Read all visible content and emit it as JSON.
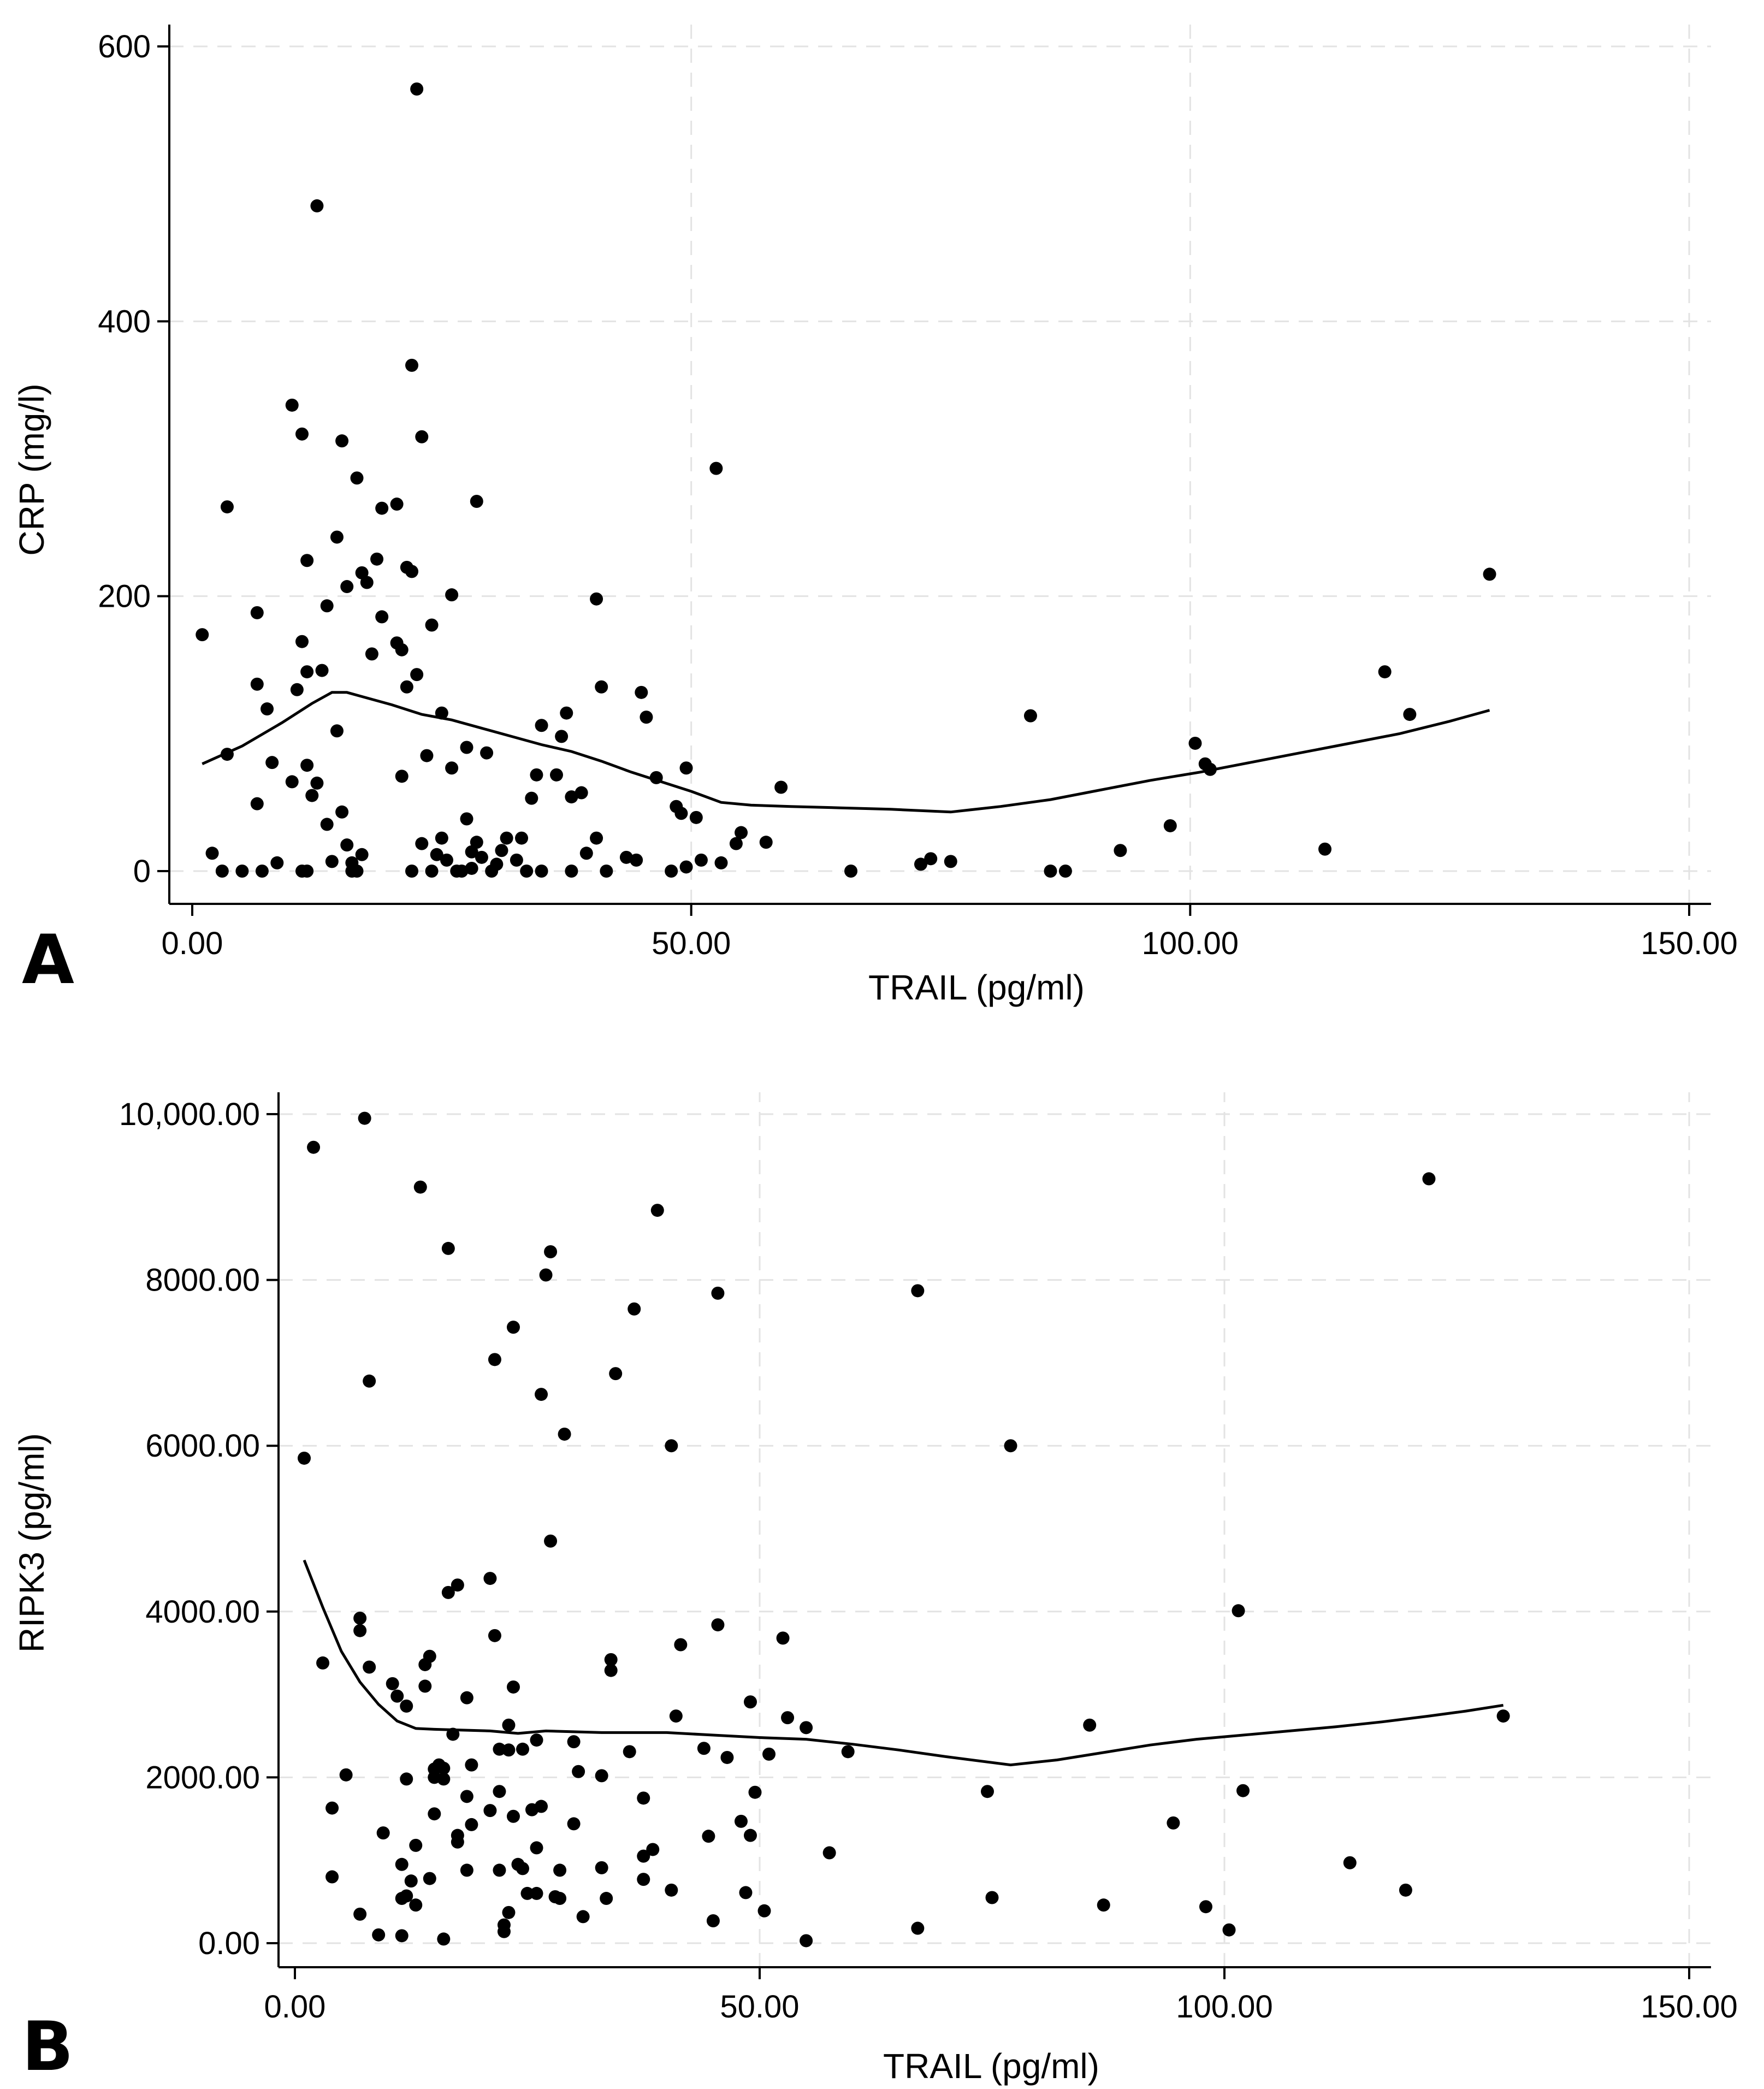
{
  "colors": {
    "background": "#ffffff",
    "ink": "#000000",
    "grid": "#e3e3e3"
  },
  "chart_data": [
    {
      "type": "scatter",
      "panel_label": "A",
      "title": "",
      "xlabel": "TRAIL (pg/ml)",
      "ylabel": "CRP (mg/l)",
      "xlim": [
        0,
        150
      ],
      "ylim": [
        0,
        600
      ],
      "xticks": [
        0,
        50,
        100,
        150
      ],
      "yticks": [
        0,
        200,
        400,
        600
      ],
      "xtick_labels": [
        "0.00",
        "50.00",
        "100.00",
        "150.00"
      ],
      "ytick_labels": [
        "0",
        "200",
        "400",
        "600"
      ],
      "grid": true,
      "legend": "none",
      "points": [
        [
          1,
          172
        ],
        [
          2,
          13
        ],
        [
          3,
          0
        ],
        [
          3.5,
          265
        ],
        [
          3.5,
          85
        ],
        [
          5,
          0
        ],
        [
          6.5,
          188
        ],
        [
          6.5,
          136
        ],
        [
          6.5,
          49
        ],
        [
          7,
          0
        ],
        [
          7.5,
          118
        ],
        [
          8,
          79
        ],
        [
          8.5,
          6
        ],
        [
          10,
          339
        ],
        [
          10,
          65
        ],
        [
          10.5,
          132
        ],
        [
          11,
          318
        ],
        [
          11,
          167
        ],
        [
          11,
          0
        ],
        [
          11.5,
          0
        ],
        [
          11.5,
          226
        ],
        [
          11.5,
          77
        ],
        [
          11.5,
          145
        ],
        [
          12,
          55
        ],
        [
          12.5,
          64
        ],
        [
          12.5,
          484
        ],
        [
          13,
          146
        ],
        [
          13.5,
          34
        ],
        [
          13.5,
          193
        ],
        [
          14,
          7
        ],
        [
          14.5,
          102
        ],
        [
          14.5,
          243
        ],
        [
          15,
          43
        ],
        [
          15,
          313
        ],
        [
          15.5,
          19
        ],
        [
          15.5,
          207
        ],
        [
          16,
          6
        ],
        [
          16,
          0
        ],
        [
          16.5,
          286
        ],
        [
          16.5,
          0
        ],
        [
          17,
          12
        ],
        [
          17,
          217
        ],
        [
          17.5,
          210
        ],
        [
          18,
          158
        ],
        [
          18.5,
          227
        ],
        [
          19,
          185
        ],
        [
          19,
          264
        ],
        [
          20.5,
          267
        ],
        [
          20.5,
          166
        ],
        [
          21,
          69
        ],
        [
          21,
          161
        ],
        [
          21.5,
          134
        ],
        [
          21.5,
          221
        ],
        [
          22,
          0
        ],
        [
          22,
          368
        ],
        [
          22,
          218
        ],
        [
          22.5,
          143
        ],
        [
          22.5,
          569
        ],
        [
          23,
          20
        ],
        [
          23,
          316
        ],
        [
          23.5,
          84
        ],
        [
          24,
          0
        ],
        [
          24,
          179
        ],
        [
          24.5,
          12
        ],
        [
          25,
          115
        ],
        [
          25,
          24
        ],
        [
          25.5,
          8
        ],
        [
          26,
          75
        ],
        [
          26,
          201
        ],
        [
          26.5,
          0
        ],
        [
          27,
          0
        ],
        [
          27.5,
          38
        ],
        [
          27.5,
          90
        ],
        [
          28,
          14
        ],
        [
          28,
          2
        ],
        [
          28.5,
          21
        ],
        [
          28.5,
          269
        ],
        [
          29,
          10
        ],
        [
          29.5,
          86
        ],
        [
          30,
          0
        ],
        [
          30.5,
          5
        ],
        [
          31,
          15
        ],
        [
          31.5,
          24
        ],
        [
          32.5,
          8
        ],
        [
          33,
          24
        ],
        [
          33.5,
          0
        ],
        [
          34,
          53
        ],
        [
          34.5,
          70
        ],
        [
          35,
          106
        ],
        [
          35,
          0
        ],
        [
          36.5,
          70
        ],
        [
          37,
          98
        ],
        [
          37.5,
          115
        ],
        [
          38,
          0
        ],
        [
          38,
          54
        ],
        [
          39,
          57
        ],
        [
          39.5,
          13
        ],
        [
          40.5,
          24
        ],
        [
          40.5,
          198
        ],
        [
          41,
          134
        ],
        [
          41.5,
          0
        ],
        [
          43.5,
          10
        ],
        [
          44.5,
          8
        ],
        [
          45,
          130
        ],
        [
          45.5,
          112
        ],
        [
          46.5,
          68
        ],
        [
          48,
          0
        ],
        [
          48.5,
          47
        ],
        [
          49,
          42
        ],
        [
          49.5,
          3
        ],
        [
          49.5,
          75
        ],
        [
          50.5,
          39
        ],
        [
          51,
          8
        ],
        [
          52.5,
          293
        ],
        [
          53,
          6
        ],
        [
          54.5,
          20
        ],
        [
          55,
          28
        ],
        [
          57.5,
          21
        ],
        [
          59,
          61
        ],
        [
          66,
          0
        ],
        [
          73,
          5
        ],
        [
          74,
          9
        ],
        [
          76,
          7
        ],
        [
          84,
          113
        ],
        [
          86,
          0
        ],
        [
          87.5,
          0
        ],
        [
          93,
          15
        ],
        [
          98,
          33
        ],
        [
          100.5,
          93
        ],
        [
          101.5,
          78
        ],
        [
          102,
          74
        ],
        [
          113.5,
          16
        ],
        [
          119.5,
          145
        ],
        [
          122,
          114
        ],
        [
          130,
          216
        ]
      ],
      "fit_line": {
        "x": [
          1,
          5,
          9,
          12,
          14,
          15.5,
          17,
          20,
          23,
          26,
          29,
          32,
          35,
          38,
          41,
          44,
          47,
          50,
          53,
          56,
          60,
          65,
          70,
          76,
          81,
          86,
          91,
          96,
          101,
          106,
          111,
          116,
          121,
          126,
          130
        ],
        "y": [
          78,
          91,
          108,
          122,
          130,
          130,
          127,
          121,
          114,
          110,
          104,
          98,
          92,
          87,
          80,
          72,
          65,
          58,
          50,
          48,
          47,
          46,
          45,
          43,
          47,
          52,
          59,
          66,
          72,
          79,
          86,
          93,
          100,
          109,
          117
        ]
      }
    },
    {
      "type": "scatter",
      "panel_label": "B",
      "title": "",
      "xlabel": "TRAIL (pg/ml)",
      "ylabel": "RIPK3 (pg/ml)",
      "xlim": [
        0,
        150
      ],
      "ylim": [
        0,
        10000
      ],
      "xticks": [
        0,
        50,
        100,
        150
      ],
      "yticks": [
        0,
        2000,
        4000,
        6000,
        8000,
        10000
      ],
      "xtick_labels": [
        "0.00",
        "50.00",
        "100.00",
        "150.00"
      ],
      "ytick_labels": [
        "0.00",
        "2000.00",
        "4000.00",
        "6000.00",
        "8000.00",
        "10,000.00"
      ],
      "grid": true,
      "legend": "none",
      "points": [
        [
          1,
          5850
        ],
        [
          2,
          9600
        ],
        [
          3,
          3380
        ],
        [
          4,
          1630
        ],
        [
          4,
          800
        ],
        [
          5.5,
          2030
        ],
        [
          7,
          3920
        ],
        [
          7,
          3770
        ],
        [
          7,
          350
        ],
        [
          7.5,
          9950
        ],
        [
          8,
          6780
        ],
        [
          8,
          3330
        ],
        [
          9,
          100
        ],
        [
          9.5,
          1330
        ],
        [
          10.5,
          3130
        ],
        [
          11,
          2980
        ],
        [
          11.5,
          950
        ],
        [
          11.5,
          540
        ],
        [
          11.5,
          90
        ],
        [
          12,
          570
        ],
        [
          12,
          1980
        ],
        [
          12,
          2860
        ],
        [
          12.5,
          750
        ],
        [
          13,
          1180
        ],
        [
          13,
          460
        ],
        [
          13.5,
          9120
        ],
        [
          14,
          3100
        ],
        [
          14,
          3360
        ],
        [
          14.5,
          780
        ],
        [
          14.5,
          3460
        ],
        [
          15,
          2100
        ],
        [
          15,
          2000
        ],
        [
          15,
          1560
        ],
        [
          15.5,
          2150
        ],
        [
          16,
          1980
        ],
        [
          16,
          2110
        ],
        [
          16,
          50
        ],
        [
          16.5,
          4230
        ],
        [
          16.5,
          8380
        ],
        [
          17,
          2520
        ],
        [
          17.5,
          1220
        ],
        [
          17.5,
          1300
        ],
        [
          17.5,
          4320
        ],
        [
          18.5,
          880
        ],
        [
          18.5,
          1770
        ],
        [
          18.5,
          2960
        ],
        [
          19,
          1430
        ],
        [
          19,
          2150
        ],
        [
          21,
          1600
        ],
        [
          21,
          4400
        ],
        [
          21.5,
          7040
        ],
        [
          21.5,
          3710
        ],
        [
          22,
          2340
        ],
        [
          22,
          1830
        ],
        [
          22,
          880
        ],
        [
          22.5,
          220
        ],
        [
          22.5,
          140
        ],
        [
          23,
          2330
        ],
        [
          23,
          2630
        ],
        [
          23,
          370
        ],
        [
          23.5,
          3090
        ],
        [
          23.5,
          1530
        ],
        [
          23.5,
          7430
        ],
        [
          24,
          950
        ],
        [
          24.5,
          2340
        ],
        [
          24.5,
          900
        ],
        [
          25,
          600
        ],
        [
          25.5,
          1610
        ],
        [
          26,
          2450
        ],
        [
          26,
          600
        ],
        [
          26,
          1150
        ],
        [
          26.5,
          1650
        ],
        [
          26.5,
          6620
        ],
        [
          27,
          8060
        ],
        [
          27.5,
          4850
        ],
        [
          27.5,
          8340
        ],
        [
          28,
          560
        ],
        [
          28.5,
          540
        ],
        [
          28.5,
          880
        ],
        [
          29,
          6140
        ],
        [
          30,
          2430
        ],
        [
          30,
          1440
        ],
        [
          30.5,
          2070
        ],
        [
          31,
          320
        ],
        [
          33,
          910
        ],
        [
          33,
          2020
        ],
        [
          33.5,
          540
        ],
        [
          34,
          3420
        ],
        [
          34,
          3290
        ],
        [
          34.5,
          6870
        ],
        [
          36,
          2310
        ],
        [
          36.5,
          7650
        ],
        [
          37.5,
          1750
        ],
        [
          37.5,
          1050
        ],
        [
          37.5,
          770
        ],
        [
          38.5,
          1130
        ],
        [
          39,
          8840
        ],
        [
          40.5,
          6000
        ],
        [
          40.5,
          640
        ],
        [
          41,
          2740
        ],
        [
          41.5,
          3600
        ],
        [
          44,
          2350
        ],
        [
          44.5,
          1290
        ],
        [
          45,
          270
        ],
        [
          45.5,
          3840
        ],
        [
          45.5,
          7840
        ],
        [
          46.5,
          2240
        ],
        [
          48,
          1470
        ],
        [
          48.5,
          610
        ],
        [
          49,
          2910
        ],
        [
          49,
          1300
        ],
        [
          49.5,
          1820
        ],
        [
          50.5,
          390
        ],
        [
          51,
          2280
        ],
        [
          52.5,
          3680
        ],
        [
          53,
          2720
        ],
        [
          55,
          30
        ],
        [
          55,
          2600
        ],
        [
          57.5,
          1090
        ],
        [
          59.5,
          2310
        ],
        [
          67,
          180
        ],
        [
          67,
          7870
        ],
        [
          74.5,
          1830
        ],
        [
          75,
          550
        ],
        [
          77,
          6000
        ],
        [
          85.5,
          2630
        ],
        [
          87,
          460
        ],
        [
          94.5,
          1450
        ],
        [
          98,
          440
        ],
        [
          100.5,
          160
        ],
        [
          101.5,
          4010
        ],
        [
          102,
          1840
        ],
        [
          113.5,
          970
        ],
        [
          119.5,
          640
        ],
        [
          122,
          9220
        ],
        [
          130,
          2740
        ]
      ],
      "fit_line": {
        "x": [
          1,
          3,
          5,
          7,
          9,
          11,
          13,
          15,
          18,
          21,
          24,
          27,
          30,
          33,
          36,
          40,
          45,
          50,
          55,
          60,
          65,
          70,
          77,
          82,
          87,
          92,
          97,
          102,
          107,
          112,
          117,
          122,
          126,
          130
        ],
        "y": [
          4620,
          4050,
          3520,
          3150,
          2880,
          2680,
          2590,
          2580,
          2570,
          2560,
          2530,
          2560,
          2550,
          2540,
          2540,
          2540,
          2510,
          2480,
          2460,
          2400,
          2330,
          2250,
          2150,
          2210,
          2300,
          2390,
          2460,
          2510,
          2560,
          2610,
          2670,
          2740,
          2800,
          2870
        ]
      }
    }
  ]
}
